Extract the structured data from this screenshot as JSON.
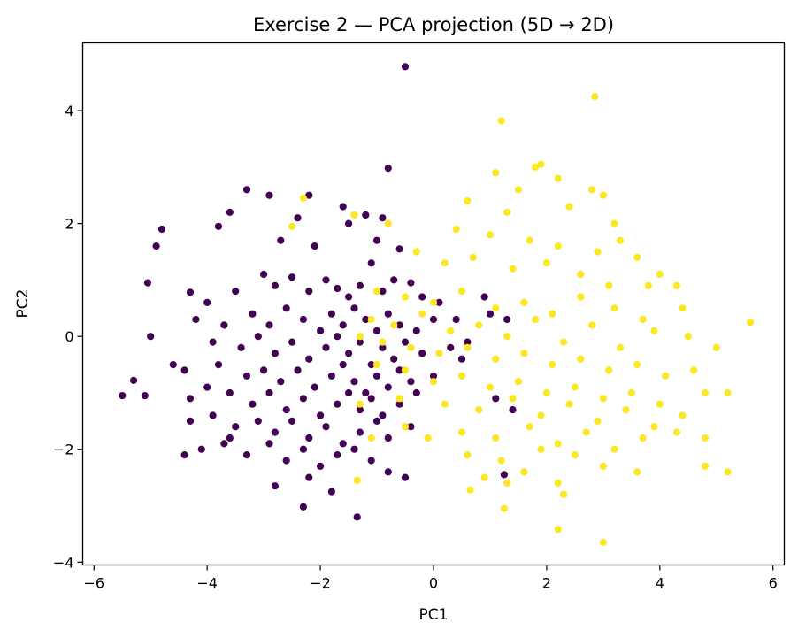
{
  "chart_data": {
    "type": "scatter",
    "title": "Exercise 2 — PCA projection (5D → 2D)",
    "xlabel": "PC1",
    "ylabel": "PC2",
    "xlim": [
      -6.2,
      6.2
    ],
    "ylim": [
      -4.05,
      5.2
    ],
    "xticks": [
      -6,
      -4,
      -2,
      0,
      2,
      4,
      6
    ],
    "yticks": [
      -4,
      -2,
      0,
      2,
      4
    ],
    "xtick_labels": [
      "−6",
      "−4",
      "−2",
      "0",
      "2",
      "4",
      "6"
    ],
    "ytick_labels": [
      "−4",
      "−2",
      "0",
      "2",
      "4"
    ],
    "grid": false,
    "colors": {
      "class0": "#440154",
      "class1": "#fde725"
    },
    "series": [
      {
        "class": 0,
        "color": "#440154",
        "points": [
          [
            -0.5,
            4.78
          ],
          [
            -0.8,
            2.98
          ],
          [
            -3.3,
            2.6
          ],
          [
            -2.9,
            2.5
          ],
          [
            -2.2,
            2.5
          ],
          [
            -1.6,
            2.3
          ],
          [
            -1.2,
            2.15
          ],
          [
            -3.6,
            2.2
          ],
          [
            -2.4,
            2.1
          ],
          [
            -4.8,
            1.9
          ],
          [
            -4.9,
            1.6
          ],
          [
            -3.8,
            1.95
          ],
          [
            -1.5,
            2.0
          ],
          [
            -0.9,
            2.1
          ],
          [
            -2.7,
            1.7
          ],
          [
            -2.1,
            1.6
          ],
          [
            -1.0,
            1.7
          ],
          [
            -0.6,
            1.55
          ],
          [
            -5.05,
            0.95
          ],
          [
            -4.3,
            0.78
          ],
          [
            -4.0,
            0.6
          ],
          [
            -3.5,
            0.8
          ],
          [
            -3.0,
            1.1
          ],
          [
            -2.8,
            0.9
          ],
          [
            -2.5,
            1.05
          ],
          [
            -2.2,
            0.8
          ],
          [
            -1.9,
            1.0
          ],
          [
            -1.7,
            0.85
          ],
          [
            -1.5,
            0.7
          ],
          [
            -1.3,
            0.9
          ],
          [
            -1.1,
            1.3
          ],
          [
            -0.9,
            0.8
          ],
          [
            -0.7,
            1.0
          ],
          [
            -0.4,
            0.95
          ],
          [
            -0.2,
            0.7
          ],
          [
            0.1,
            0.6
          ],
          [
            0.4,
            0.3
          ],
          [
            0.9,
            0.7
          ],
          [
            1.3,
            0.3
          ],
          [
            1.0,
            0.4
          ],
          [
            -4.2,
            0.3
          ],
          [
            -3.7,
            0.2
          ],
          [
            -3.2,
            0.4
          ],
          [
            -2.9,
            0.2
          ],
          [
            -2.6,
            0.5
          ],
          [
            -2.3,
            0.3
          ],
          [
            -2.0,
            0.1
          ],
          [
            -1.8,
            0.4
          ],
          [
            -1.6,
            0.2
          ],
          [
            -1.4,
            0.5
          ],
          [
            -1.2,
            0.3
          ],
          [
            -1.0,
            0.1
          ],
          [
            -0.8,
            0.4
          ],
          [
            -0.6,
            0.2
          ],
          [
            -0.3,
            0.1
          ],
          [
            0.0,
            0.3
          ],
          [
            0.3,
            -0.2
          ],
          [
            0.6,
            -0.1
          ],
          [
            -5.0,
            0.0
          ],
          [
            -3.9,
            -0.1
          ],
          [
            -3.4,
            -0.2
          ],
          [
            -3.1,
            0.0
          ],
          [
            -2.8,
            -0.3
          ],
          [
            -2.5,
            -0.1
          ],
          [
            -2.2,
            -0.4
          ],
          [
            -1.9,
            -0.2
          ],
          [
            -1.7,
            0.0
          ],
          [
            -1.5,
            -0.3
          ],
          [
            -1.3,
            -0.1
          ],
          [
            -1.1,
            -0.5
          ],
          [
            -0.9,
            -0.2
          ],
          [
            -0.7,
            -0.4
          ],
          [
            -0.5,
            -0.1
          ],
          [
            -0.2,
            -0.3
          ],
          [
            0.5,
            -0.4
          ],
          [
            -4.4,
            -0.6
          ],
          [
            -3.8,
            -0.5
          ],
          [
            -3.3,
            -0.7
          ],
          [
            -3.0,
            -0.6
          ],
          [
            -2.7,
            -0.8
          ],
          [
            -2.4,
            -0.6
          ],
          [
            -2.1,
            -0.9
          ],
          [
            -1.8,
            -0.7
          ],
          [
            -1.6,
            -0.5
          ],
          [
            -1.4,
            -0.8
          ],
          [
            -1.2,
            -1.0
          ],
          [
            -1.0,
            -0.7
          ],
          [
            -0.8,
            -0.9
          ],
          [
            -0.6,
            -0.6
          ],
          [
            -0.4,
            -0.8
          ],
          [
            0.0,
            -0.7
          ],
          [
            -5.5,
            -1.05
          ],
          [
            -5.3,
            -0.78
          ],
          [
            -5.1,
            -1.05
          ],
          [
            -4.6,
            -0.5
          ],
          [
            -4.3,
            -1.1
          ],
          [
            -4.0,
            -0.9
          ],
          [
            -3.6,
            -1.0
          ],
          [
            -3.2,
            -1.2
          ],
          [
            -2.9,
            -1.0
          ],
          [
            -2.6,
            -1.3
          ],
          [
            -2.3,
            -1.1
          ],
          [
            -2.0,
            -1.4
          ],
          [
            -1.7,
            -1.2
          ],
          [
            -1.5,
            -1.0
          ],
          [
            -1.3,
            -1.3
          ],
          [
            -1.1,
            -1.1
          ],
          [
            -0.9,
            -1.4
          ],
          [
            -0.6,
            -1.2
          ],
          [
            -0.3,
            -1.0
          ],
          [
            1.1,
            -1.1
          ],
          [
            1.4,
            -1.3
          ],
          [
            -4.3,
            -1.5
          ],
          [
            -3.9,
            -1.4
          ],
          [
            -3.5,
            -1.6
          ],
          [
            -3.1,
            -1.5
          ],
          [
            -2.8,
            -1.7
          ],
          [
            -2.5,
            -1.5
          ],
          [
            -2.2,
            -1.8
          ],
          [
            -1.9,
            -1.6
          ],
          [
            -1.6,
            -1.9
          ],
          [
            -1.3,
            -1.7
          ],
          [
            -1.0,
            -1.5
          ],
          [
            -0.8,
            -1.8
          ],
          [
            -0.4,
            -1.6
          ],
          [
            -4.1,
            -2.0
          ],
          [
            -3.7,
            -1.9
          ],
          [
            -3.3,
            -2.1
          ],
          [
            -2.9,
            -1.9
          ],
          [
            -2.6,
            -2.2
          ],
          [
            -2.3,
            -2.0
          ],
          [
            -2.0,
            -2.3
          ],
          [
            -1.7,
            -2.1
          ],
          [
            -1.4,
            -2.0
          ],
          [
            -1.1,
            -2.2
          ],
          [
            -0.8,
            -2.4
          ],
          [
            -0.5,
            -2.5
          ],
          [
            -4.4,
            -2.1
          ],
          [
            -2.8,
            -2.65
          ],
          [
            -2.2,
            -2.5
          ],
          [
            -1.8,
            -2.75
          ],
          [
            -2.3,
            -3.02
          ],
          [
            -1.35,
            -3.2
          ],
          [
            1.25,
            -2.45
          ],
          [
            -3.6,
            -1.8
          ]
        ]
      },
      {
        "class": 1,
        "color": "#fde725",
        "points": [
          [
            2.85,
            4.25
          ],
          [
            1.2,
            3.82
          ],
          [
            1.8,
            3.0
          ],
          [
            1.9,
            3.05
          ],
          [
            2.2,
            2.8
          ],
          [
            1.1,
            2.9
          ],
          [
            0.6,
            2.4
          ],
          [
            1.5,
            2.6
          ],
          [
            2.8,
            2.6
          ],
          [
            3.0,
            2.5
          ],
          [
            1.3,
            2.2
          ],
          [
            2.4,
            2.3
          ],
          [
            3.2,
            2.0
          ],
          [
            -2.3,
            2.45
          ],
          [
            -1.4,
            2.15
          ],
          [
            -0.8,
            2.0
          ],
          [
            0.4,
            1.9
          ],
          [
            1.0,
            1.8
          ],
          [
            1.7,
            1.7
          ],
          [
            2.2,
            1.6
          ],
          [
            2.9,
            1.5
          ],
          [
            3.3,
            1.7
          ],
          [
            3.6,
            1.4
          ],
          [
            4.0,
            1.1
          ],
          [
            -2.5,
            1.95
          ],
          [
            -0.3,
            1.5
          ],
          [
            0.2,
            1.3
          ],
          [
            0.7,
            1.4
          ],
          [
            1.4,
            1.2
          ],
          [
            2.0,
            1.3
          ],
          [
            2.6,
            1.1
          ],
          [
            3.1,
            0.9
          ],
          [
            3.8,
            0.9
          ],
          [
            4.3,
            0.9
          ],
          [
            -1.0,
            0.8
          ],
          [
            -0.5,
            0.7
          ],
          [
            0.0,
            0.6
          ],
          [
            0.5,
            0.8
          ],
          [
            1.1,
            0.5
          ],
          [
            1.6,
            0.6
          ],
          [
            2.1,
            0.4
          ],
          [
            2.6,
            0.7
          ],
          [
            3.2,
            0.5
          ],
          [
            3.7,
            0.3
          ],
          [
            4.4,
            0.5
          ],
          [
            -1.1,
            0.3
          ],
          [
            -0.7,
            0.2
          ],
          [
            -0.2,
            0.4
          ],
          [
            0.3,
            0.1
          ],
          [
            0.8,
            0.2
          ],
          [
            1.3,
            0.0
          ],
          [
            1.8,
            0.3
          ],
          [
            2.3,
            -0.1
          ],
          [
            2.8,
            0.2
          ],
          [
            3.3,
            -0.2
          ],
          [
            3.9,
            0.1
          ],
          [
            4.5,
            0.0
          ],
          [
            5.0,
            -0.2
          ],
          [
            5.6,
            0.25
          ],
          [
            -1.3,
            0.0
          ],
          [
            -0.9,
            -0.1
          ],
          [
            -0.4,
            -0.2
          ],
          [
            0.1,
            -0.3
          ],
          [
            0.6,
            -0.2
          ],
          [
            1.1,
            -0.4
          ],
          [
            1.6,
            -0.3
          ],
          [
            2.1,
            -0.5
          ],
          [
            2.6,
            -0.4
          ],
          [
            3.1,
            -0.6
          ],
          [
            3.6,
            -0.5
          ],
          [
            4.1,
            -0.7
          ],
          [
            4.6,
            -0.6
          ],
          [
            -1.0,
            -0.5
          ],
          [
            -0.5,
            -0.6
          ],
          [
            0.0,
            -0.8
          ],
          [
            0.5,
            -0.7
          ],
          [
            1.0,
            -0.9
          ],
          [
            1.5,
            -0.8
          ],
          [
            2.0,
            -1.0
          ],
          [
            2.5,
            -0.9
          ],
          [
            3.0,
            -1.1
          ],
          [
            3.5,
            -1.0
          ],
          [
            4.0,
            -1.2
          ],
          [
            4.8,
            -1.0
          ],
          [
            5.2,
            -1.0
          ],
          [
            -1.3,
            -1.2
          ],
          [
            -0.6,
            -1.1
          ],
          [
            0.2,
            -1.2
          ],
          [
            0.8,
            -1.3
          ],
          [
            1.4,
            -1.1
          ],
          [
            1.9,
            -1.4
          ],
          [
            2.4,
            -1.2
          ],
          [
            2.9,
            -1.5
          ],
          [
            3.4,
            -1.3
          ],
          [
            3.9,
            -1.6
          ],
          [
            4.4,
            -1.4
          ],
          [
            -0.5,
            -1.6
          ],
          [
            0.5,
            -1.7
          ],
          [
            1.1,
            -1.8
          ],
          [
            1.7,
            -1.6
          ],
          [
            2.2,
            -1.9
          ],
          [
            2.7,
            -1.7
          ],
          [
            3.2,
            -2.0
          ],
          [
            3.7,
            -1.8
          ],
          [
            4.3,
            -1.7
          ],
          [
            4.8,
            -1.8
          ],
          [
            -1.1,
            -1.8
          ],
          [
            -0.1,
            -1.8
          ],
          [
            0.6,
            -2.1
          ],
          [
            1.2,
            -2.2
          ],
          [
            1.9,
            -2.0
          ],
          [
            2.5,
            -2.1
          ],
          [
            3.0,
            -2.3
          ],
          [
            3.6,
            -2.4
          ],
          [
            4.8,
            -2.3
          ],
          [
            5.2,
            -2.4
          ],
          [
            0.9,
            -2.5
          ],
          [
            1.6,
            -2.4
          ],
          [
            2.2,
            -2.6
          ],
          [
            1.3,
            -2.6
          ],
          [
            2.3,
            -2.8
          ],
          [
            0.65,
            -2.72
          ],
          [
            1.25,
            -3.05
          ],
          [
            2.2,
            -3.42
          ],
          [
            3.0,
            -3.65
          ],
          [
            -1.35,
            -2.55
          ]
        ]
      }
    ]
  }
}
